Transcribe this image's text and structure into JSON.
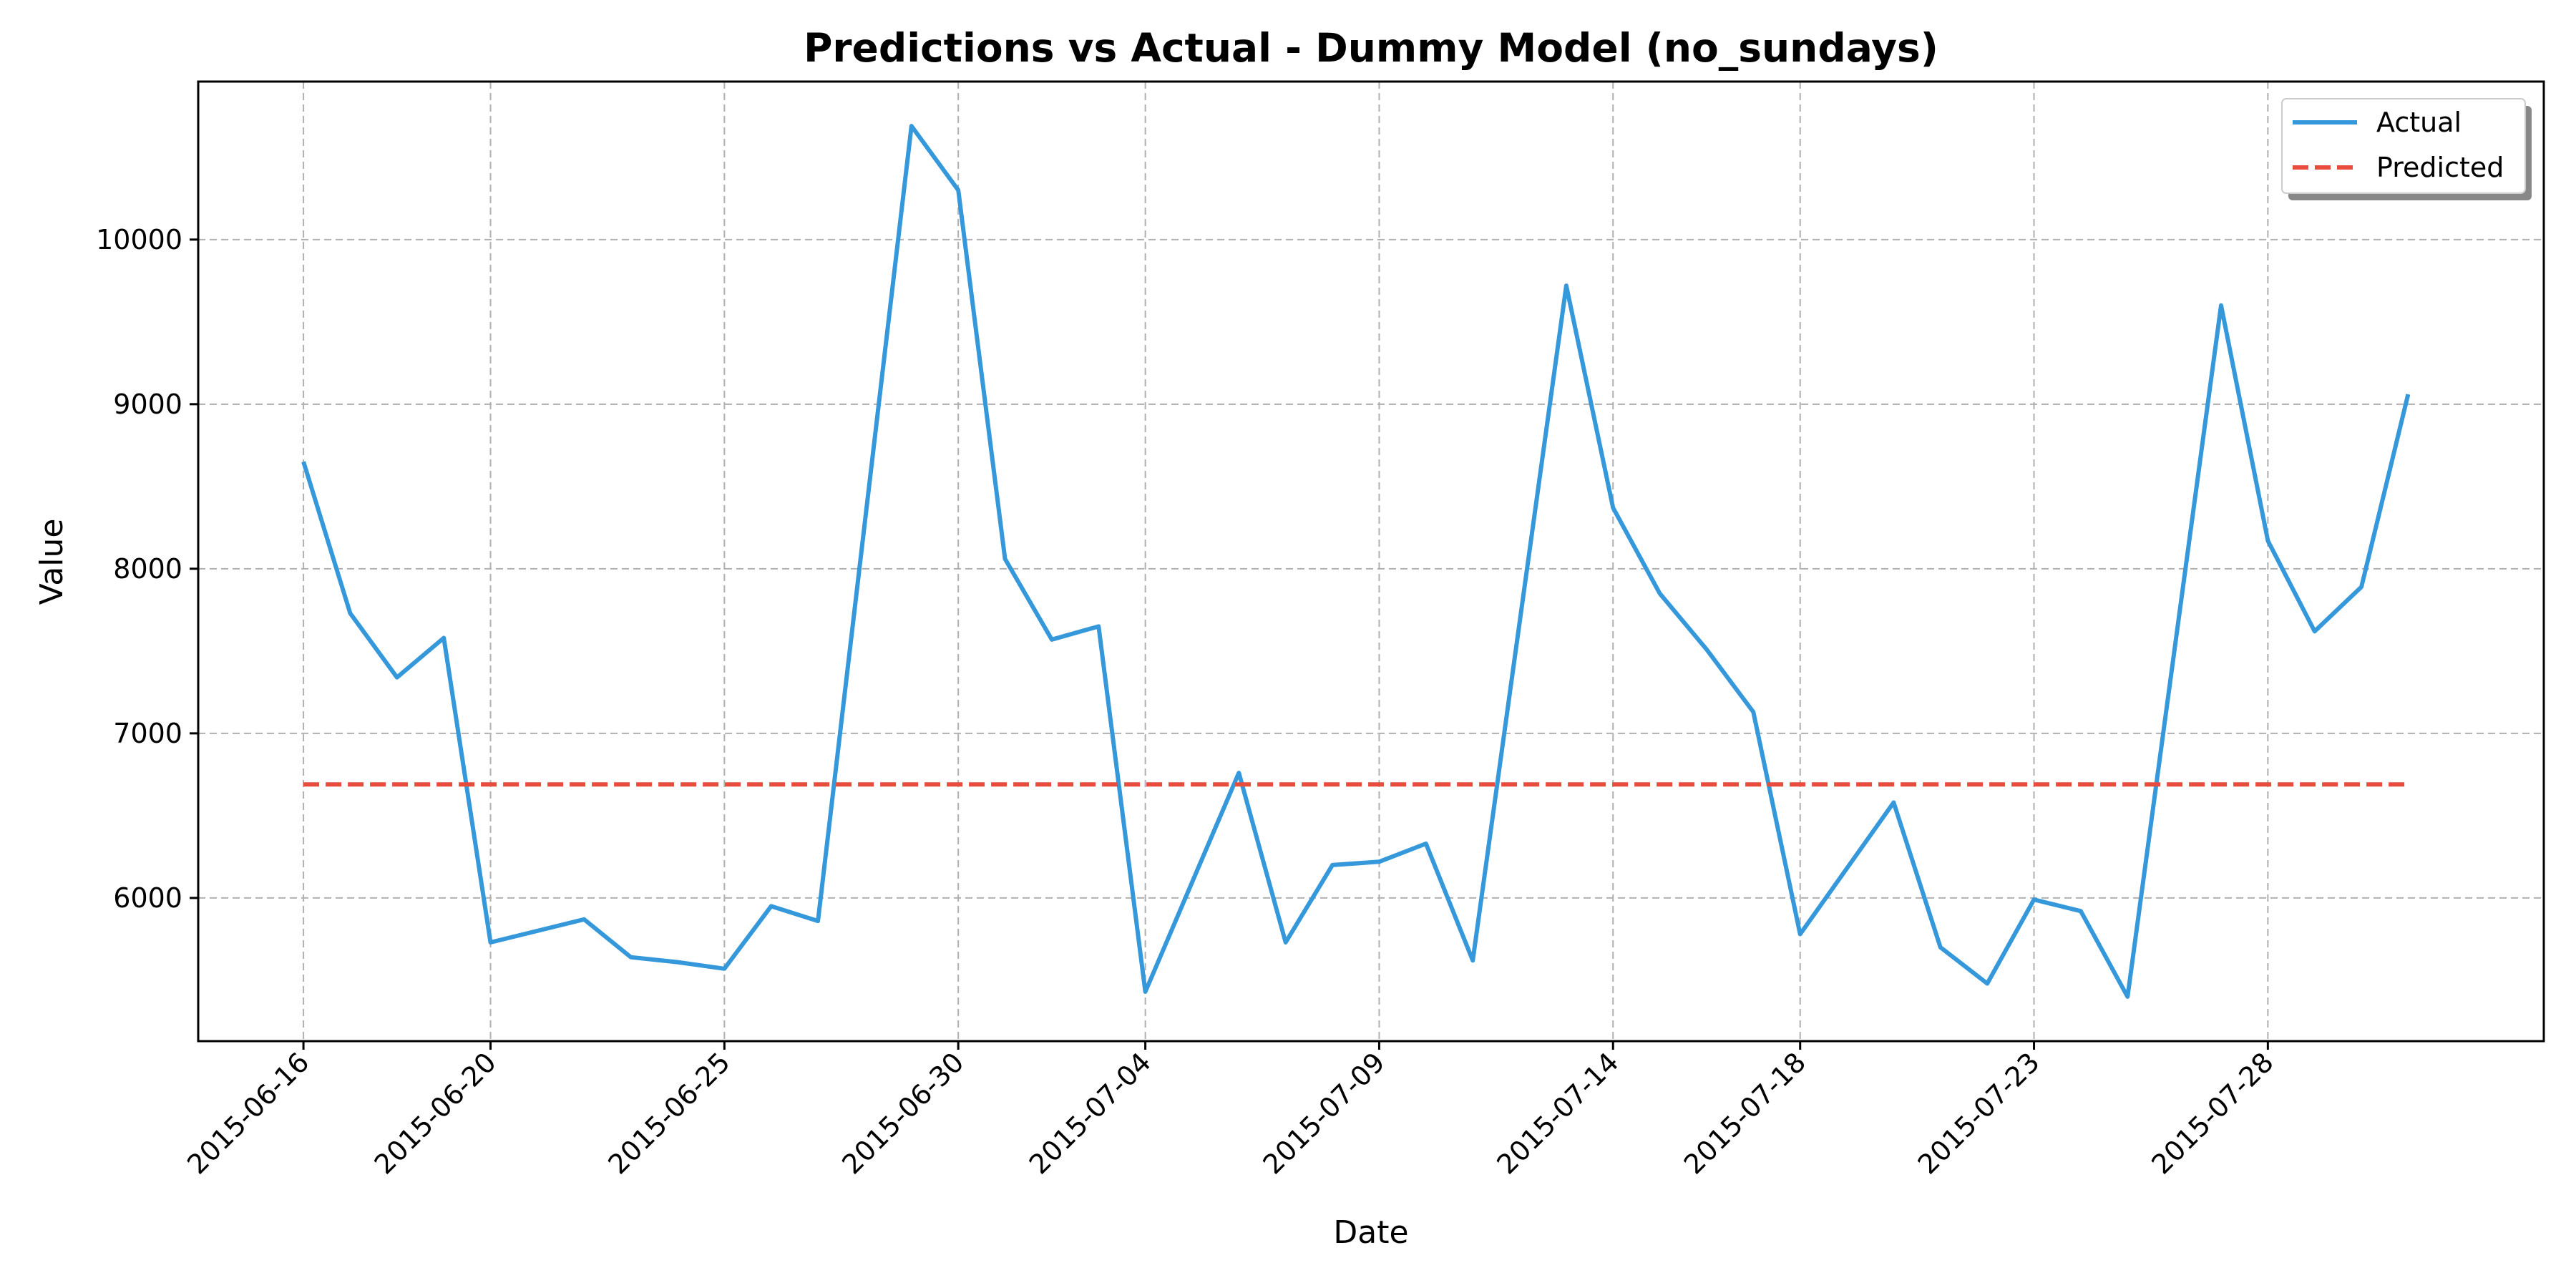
{
  "chart_data": {
    "type": "line",
    "title": "Predictions vs Actual - Dummy Model (no_sundays)",
    "xlabel": "Date",
    "ylabel": "Value",
    "x_tick_labels": [
      "2015-06-16",
      "2015-06-20",
      "2015-06-25",
      "2015-06-30",
      "2015-07-04",
      "2015-07-09",
      "2015-07-14",
      "2015-07-18",
      "2015-07-23",
      "2015-07-28"
    ],
    "y_tick_labels": [
      "6000",
      "7000",
      "8000",
      "9000",
      "10000"
    ],
    "y_ticks": [
      6000,
      7000,
      8000,
      9000,
      10000
    ],
    "xlim": [
      "2015-06-13.75",
      "2015-08-02.9"
    ],
    "ylim": [
      5130,
      10960
    ],
    "grid": true,
    "legend_position": "top-right",
    "series": [
      {
        "name": "Actual",
        "color": "#3498db",
        "style": "solid",
        "points": [
          [
            "2015-06-16",
            8650
          ],
          [
            "2015-06-17",
            7730
          ],
          [
            "2015-06-18",
            7340
          ],
          [
            "2015-06-19",
            7580
          ],
          [
            "2015-06-20",
            5730
          ],
          [
            "2015-06-22",
            5870
          ],
          [
            "2015-06-23",
            5640
          ],
          [
            "2015-06-24",
            5610
          ],
          [
            "2015-06-25",
            5570
          ],
          [
            "2015-06-26",
            5950
          ],
          [
            "2015-06-27",
            5860
          ],
          [
            "2015-06-29",
            10690
          ],
          [
            "2015-06-30",
            10300
          ],
          [
            "2015-07-01",
            8060
          ],
          [
            "2015-07-02",
            7570
          ],
          [
            "2015-07-03",
            7650
          ],
          [
            "2015-07-04",
            5430
          ],
          [
            "2015-07-06",
            6760
          ],
          [
            "2015-07-07",
            5730
          ],
          [
            "2015-07-08",
            6200
          ],
          [
            "2015-07-09",
            6220
          ],
          [
            "2015-07-10",
            6330
          ],
          [
            "2015-07-11",
            5620
          ],
          [
            "2015-07-13",
            9720
          ],
          [
            "2015-07-14",
            8370
          ],
          [
            "2015-07-15",
            7850
          ],
          [
            "2015-07-16",
            7510
          ],
          [
            "2015-07-17",
            7130
          ],
          [
            "2015-07-18",
            5780
          ],
          [
            "2015-07-20",
            6580
          ],
          [
            "2015-07-21",
            5700
          ],
          [
            "2015-07-22",
            5480
          ],
          [
            "2015-07-23",
            5990
          ],
          [
            "2015-07-24",
            5920
          ],
          [
            "2015-07-25",
            5400
          ],
          [
            "2015-07-27",
            9600
          ],
          [
            "2015-07-28",
            8170
          ],
          [
            "2015-07-29",
            7620
          ],
          [
            "2015-07-30",
            7890
          ],
          [
            "2015-07-31",
            9060
          ]
        ]
      },
      {
        "name": "Predicted",
        "color": "#e74c3c",
        "style": "dashed",
        "points": [
          [
            "2015-06-16",
            6690
          ],
          [
            "2015-07-31",
            6690
          ]
        ]
      }
    ]
  }
}
